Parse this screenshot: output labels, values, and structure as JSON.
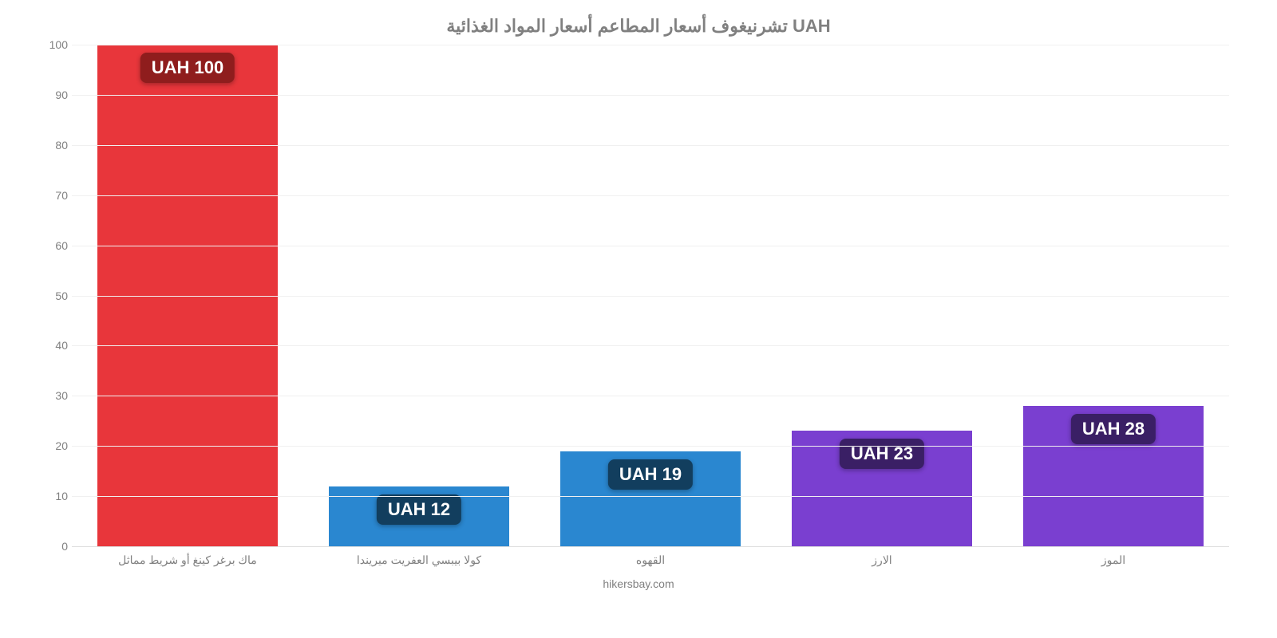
{
  "chart": {
    "type": "bar",
    "title": "تشرنيغوف أسعار المطاعم أسعار المواد الغذائية UAH",
    "title_fontsize": 22,
    "title_color": "#808080",
    "background_color": "#ffffff",
    "grid_color": "#f0f0f0",
    "axis_color": "#dddddd",
    "tick_color": "#808080",
    "tick_fontsize": 14,
    "ylim": [
      0,
      100
    ],
    "ytick_step": 10,
    "yticks": [
      0,
      10,
      20,
      30,
      40,
      50,
      60,
      70,
      80,
      90,
      100
    ],
    "bar_width_pct": 78,
    "categories": [
      "ماك برغر كينغ أو شريط مماثل",
      "كولا بيبسي العفريت ميريندا",
      "القهوه",
      "الارز",
      "الموز"
    ],
    "values": [
      100,
      12,
      19,
      23,
      28
    ],
    "value_labels": [
      "UAH 100",
      "UAH 12",
      "UAH 19",
      "UAH 23",
      "UAH 28"
    ],
    "bar_colors": [
      "#e8363b",
      "#2a87d0",
      "#2a87d0",
      "#7a3fd0",
      "#7a3fd0"
    ],
    "label_bg_colors": [
      "#8f1d1d",
      "#123e5e",
      "#123e5e",
      "#3a1f65",
      "#3a1f65"
    ],
    "label_text_color": "#ffffff",
    "label_fontsize": 22,
    "source": "hikersbay.com",
    "source_color": "#808080",
    "source_fontsize": 14
  }
}
